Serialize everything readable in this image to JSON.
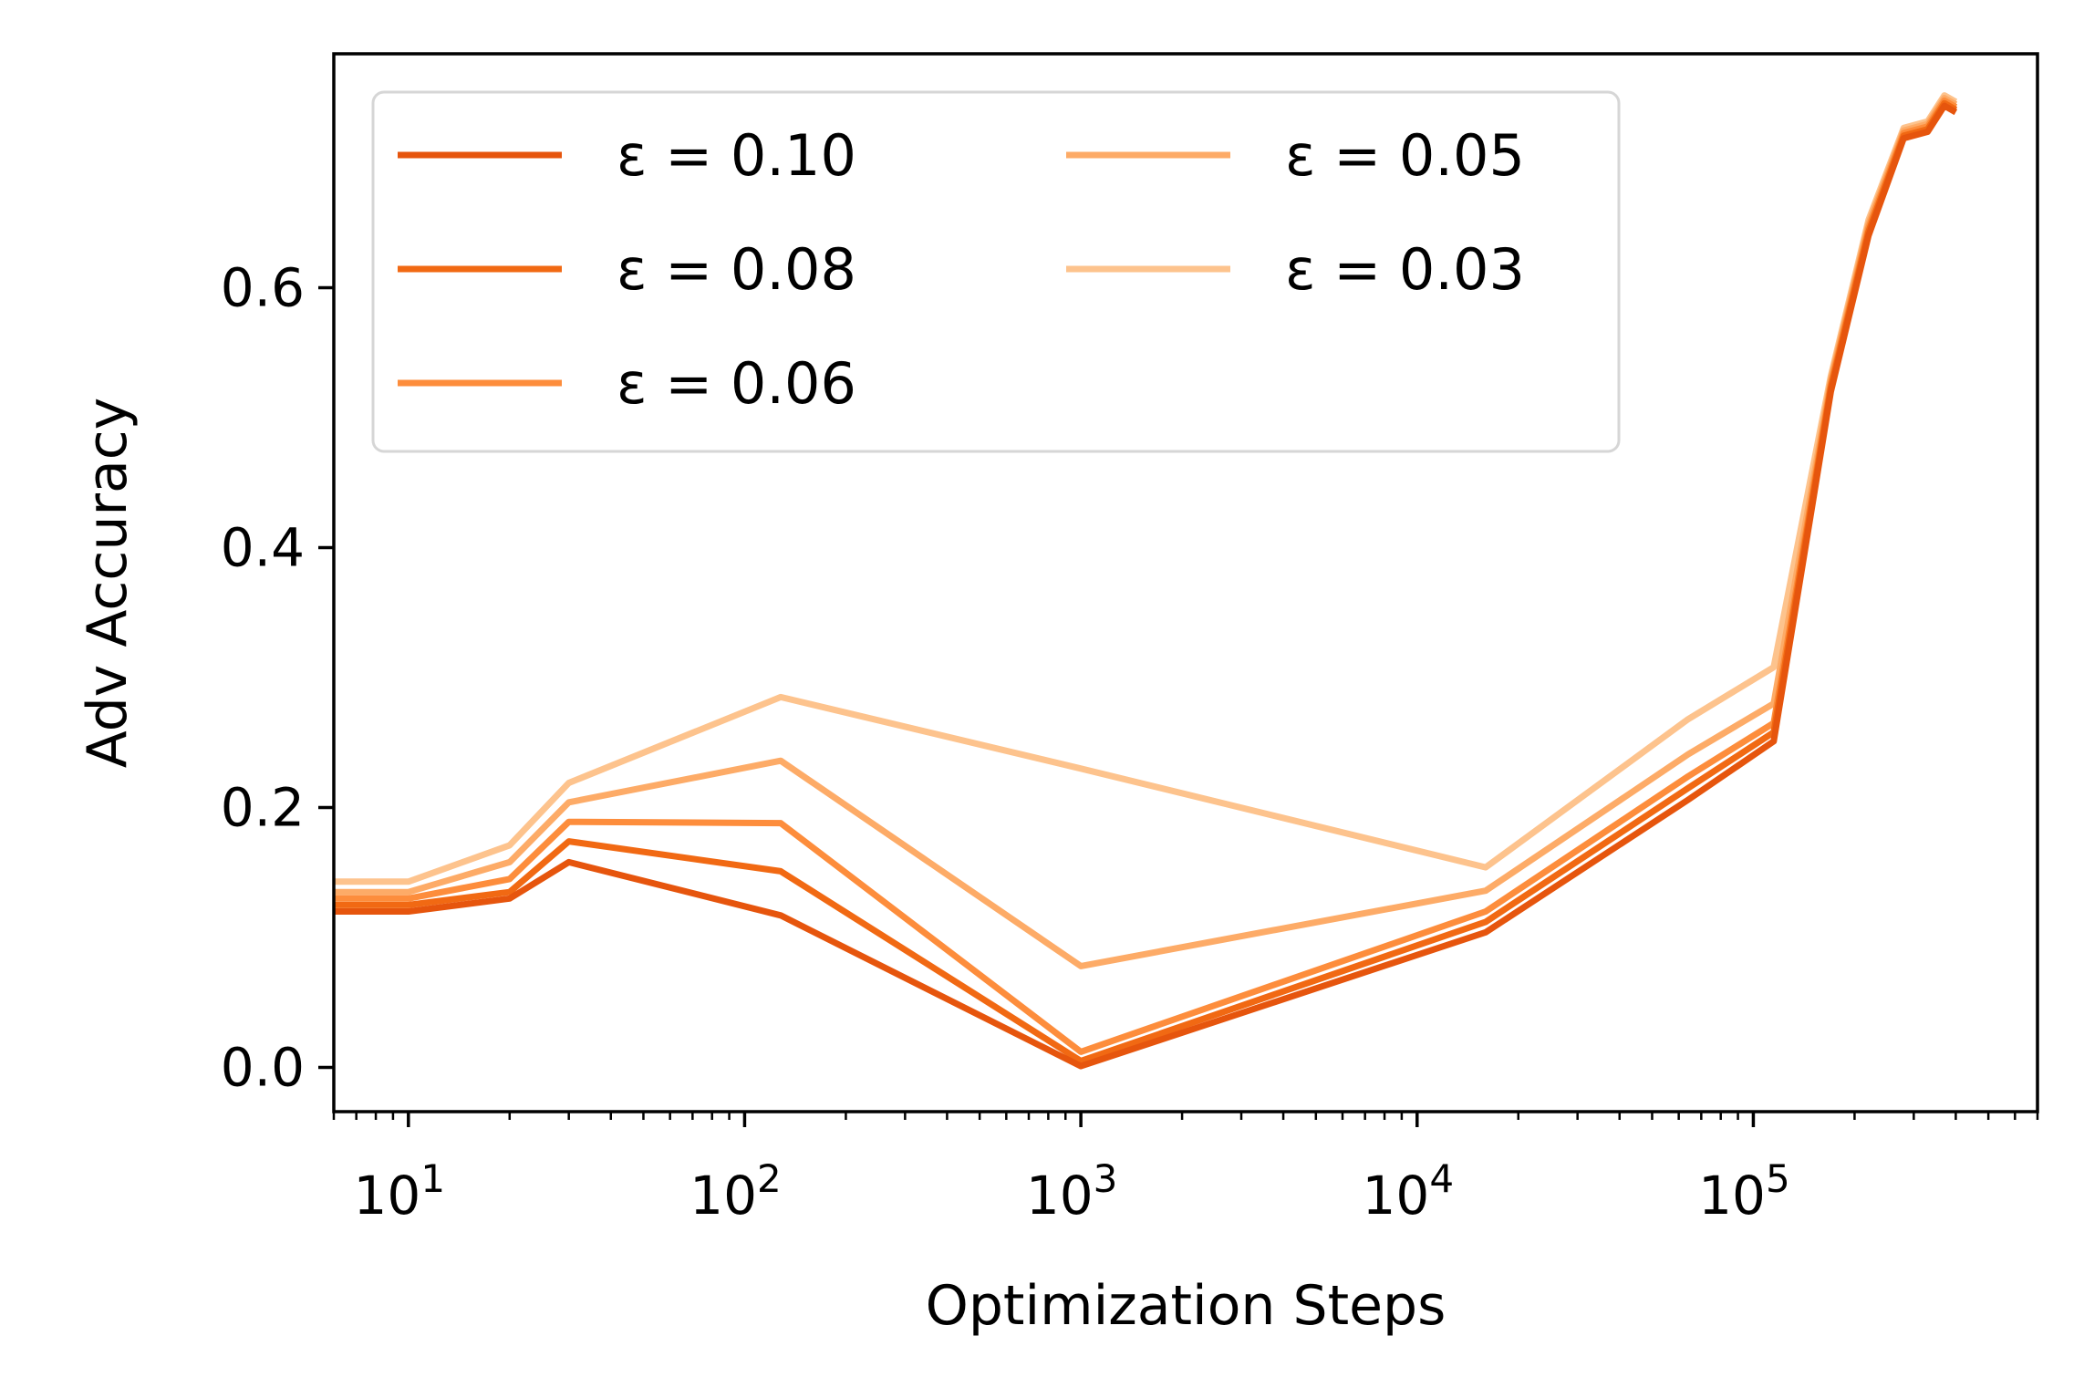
{
  "chart_data": {
    "type": "line",
    "xlabel": "Optimization Steps",
    "ylabel": "Adv Accuracy",
    "xscale": "log",
    "xlim": [
      6,
      700000
    ],
    "ylim": [
      -0.034,
      0.78
    ],
    "xticks": [
      {
        "value": 10,
        "base": "10",
        "exp": "1"
      },
      {
        "value": 100,
        "base": "10",
        "exp": "2"
      },
      {
        "value": 1000,
        "base": "10",
        "exp": "3"
      },
      {
        "value": 10000,
        "base": "10",
        "exp": "4"
      },
      {
        "value": 100000,
        "base": "10",
        "exp": "5"
      }
    ],
    "yticks": [
      {
        "value": 0.0,
        "label": "0.0"
      },
      {
        "value": 0.2,
        "label": "0.2"
      },
      {
        "value": 0.4,
        "label": "0.4"
      },
      {
        "value": 0.6,
        "label": "0.6"
      }
    ],
    "grid": false,
    "legend": {
      "position": "upper-left",
      "columns": 2
    },
    "x": [
      6,
      10,
      20,
      30,
      128,
      1000,
      16000,
      64000,
      115000,
      170000,
      220000,
      280000,
      330000,
      370000,
      400000
    ],
    "series": [
      {
        "name": "ε = 0.10",
        "color": "#e6550d",
        "values": [
          0.12,
          0.12,
          0.13,
          0.158,
          0.117,
          0.001,
          0.104,
          0.206,
          0.251,
          0.52,
          0.64,
          0.715,
          0.72,
          0.74,
          0.735
        ]
      },
      {
        "name": "ε = 0.08",
        "color": "#f16913",
        "values": [
          0.125,
          0.125,
          0.135,
          0.174,
          0.151,
          0.005,
          0.112,
          0.215,
          0.258,
          0.523,
          0.643,
          0.717,
          0.722,
          0.742,
          0.737
        ]
      },
      {
        "name": "ε = 0.06",
        "color": "#fd8d3c",
        "values": [
          0.13,
          0.13,
          0.145,
          0.189,
          0.188,
          0.012,
          0.12,
          0.224,
          0.265,
          0.526,
          0.646,
          0.719,
          0.724,
          0.744,
          0.739
        ]
      },
      {
        "name": "ε = 0.05",
        "color": "#fdab67",
        "values": [
          0.135,
          0.135,
          0.158,
          0.204,
          0.236,
          0.078,
          0.136,
          0.241,
          0.28,
          0.529,
          0.649,
          0.721,
          0.726,
          0.746,
          0.741
        ]
      },
      {
        "name": "ε = 0.03",
        "color": "#fdc38d",
        "values": [
          0.143,
          0.143,
          0.171,
          0.219,
          0.285,
          0.23,
          0.154,
          0.268,
          0.308,
          0.532,
          0.652,
          0.723,
          0.728,
          0.748,
          0.743
        ]
      }
    ]
  }
}
